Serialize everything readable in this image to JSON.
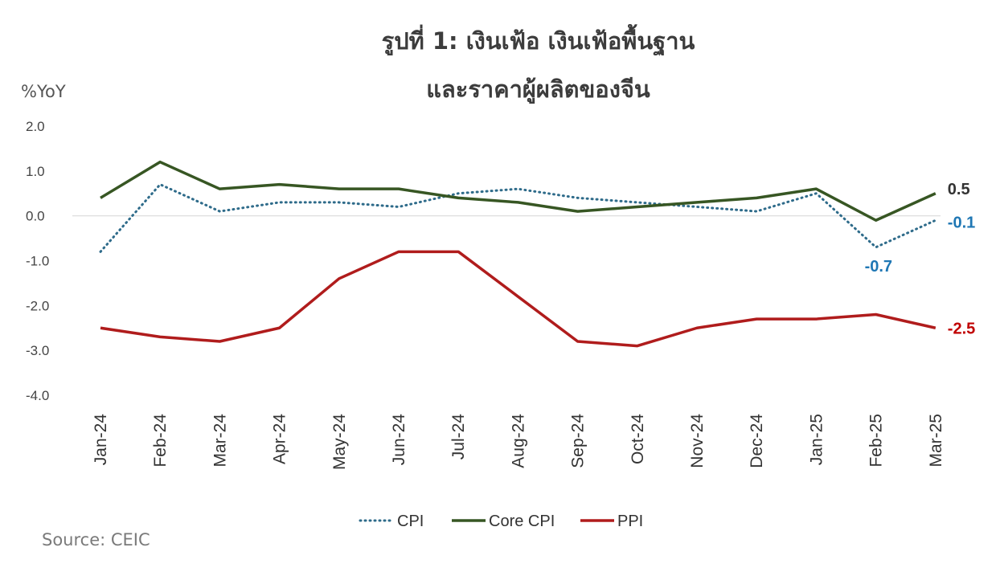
{
  "chart_data": {
    "type": "line",
    "title_line1": "รูปที่ 1: เงินเฟ้อ เงินเฟ้อพื้นฐาน",
    "title_line2": "และราคาผู้ผลิตของจีน",
    "ylabel": "%YoY",
    "ylim": [
      -4.0,
      2.0
    ],
    "yticks": [
      "2.0",
      "1.0",
      "0.0",
      "-1.0",
      "-2.0",
      "-3.0",
      "-4.0"
    ],
    "categories": [
      "Jan-24",
      "Feb-24",
      "Mar-24",
      "Apr-24",
      "May-24",
      "Jun-24",
      "Jul-24",
      "Aug-24",
      "Sep-24",
      "Oct-24",
      "Nov-24",
      "Dec-24",
      "Jan-25",
      "Feb-25",
      "Mar-25"
    ],
    "series": [
      {
        "name": "CPI",
        "color": "#2e6b8a",
        "style": "dotted",
        "values": [
          -0.8,
          0.7,
          0.1,
          0.3,
          0.3,
          0.2,
          0.5,
          0.6,
          0.4,
          0.3,
          0.2,
          0.1,
          0.5,
          -0.7,
          -0.1
        ]
      },
      {
        "name": "Core CPI",
        "color": "#375623",
        "style": "solid",
        "values": [
          0.4,
          1.2,
          0.6,
          0.7,
          0.6,
          0.6,
          0.4,
          0.3,
          0.1,
          0.2,
          0.3,
          0.4,
          0.6,
          -0.1,
          0.5
        ]
      },
      {
        "name": "PPI",
        "color": "#b01c1c",
        "style": "solid",
        "values": [
          -2.5,
          -2.7,
          -2.8,
          -2.5,
          -1.4,
          -0.8,
          -0.8,
          -1.8,
          -2.8,
          -2.9,
          -2.5,
          -2.3,
          -2.3,
          -2.2,
          -2.5
        ]
      }
    ],
    "annotations": [
      {
        "text": "0.5",
        "color": "#333333"
      },
      {
        "text": "-0.1",
        "color": "#1f77b4"
      },
      {
        "text": "-0.7",
        "color": "#1f77b4"
      },
      {
        "text": "-2.5",
        "color": "#c00000"
      }
    ],
    "legend_position": "bottom-center",
    "grid": false
  },
  "source": "Source: CEIC"
}
